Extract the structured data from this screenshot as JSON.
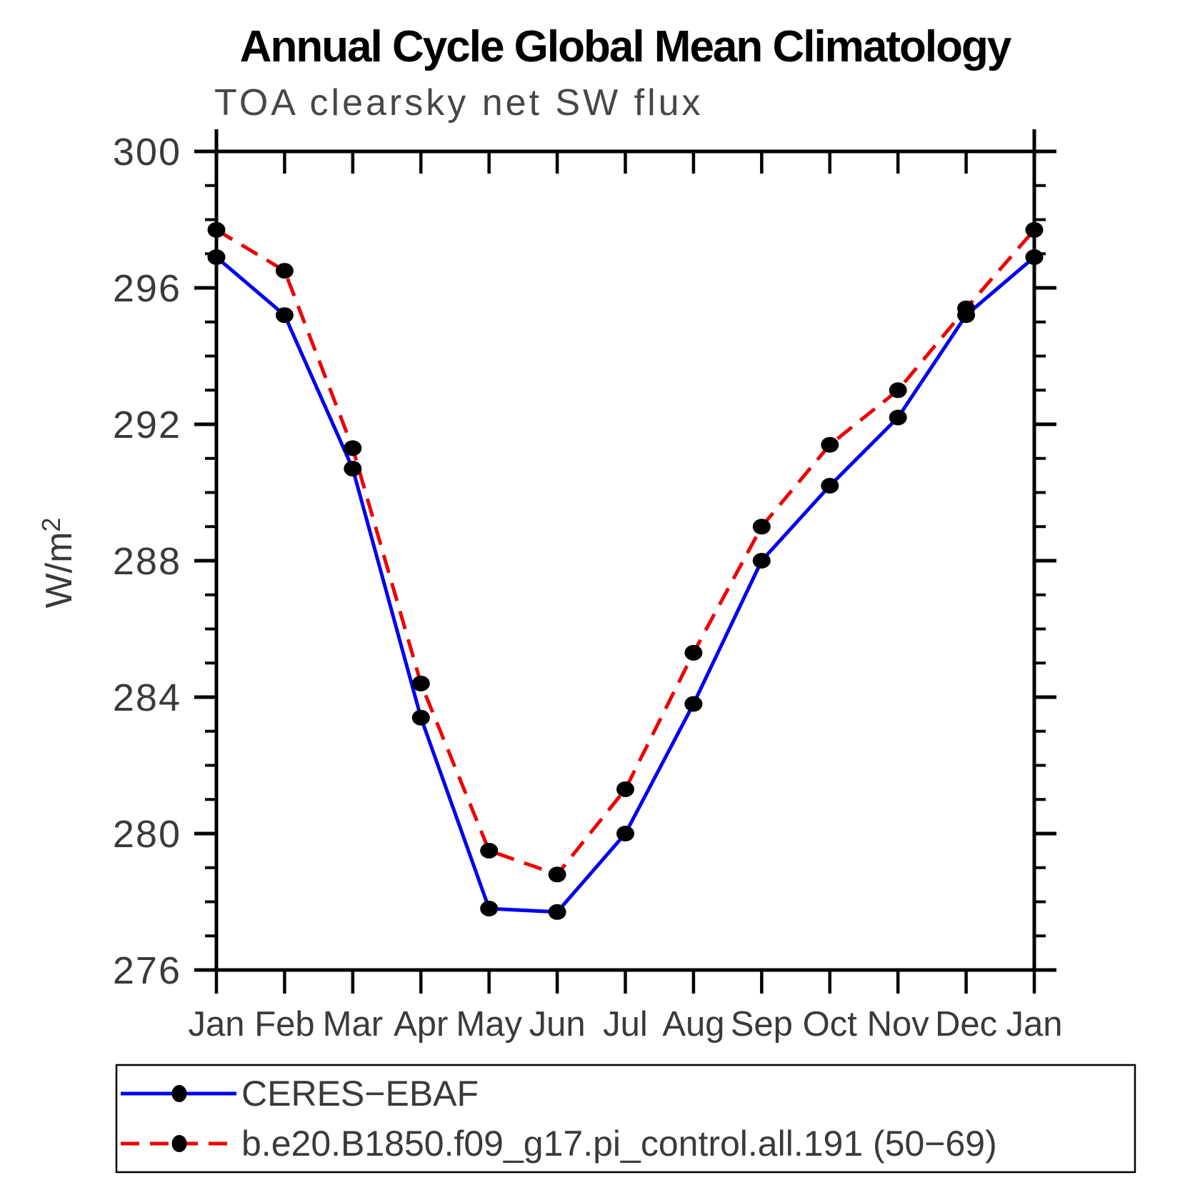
{
  "title": "Annual Cycle Global Mean Climatology",
  "subtitle": "TOA clearsky net SW flux",
  "y_axis": {
    "label_base": "W/m",
    "label_exp": "2"
  },
  "legend": {
    "items": [
      {
        "label": "CERES−EBAF"
      },
      {
        "label": "b.e20.B1850.f09_g17.pi_control.all.191 (50−69)"
      }
    ]
  },
  "chart_data": {
    "type": "line",
    "title": "Annual Cycle Global Mean Climatology",
    "subtitle": "TOA clearsky net SW flux",
    "xlabel": "",
    "ylabel": "W/m^2",
    "categories": [
      "Jan",
      "Feb",
      "Mar",
      "Apr",
      "May",
      "Jun",
      "Jul",
      "Aug",
      "Sep",
      "Oct",
      "Nov",
      "Dec",
      "Jan"
    ],
    "ylim": [
      276,
      300
    ],
    "yticks_major": [
      276,
      280,
      284,
      288,
      292,
      296,
      300
    ],
    "ytick_minor_step": 1,
    "grid": false,
    "legend_position": "bottom",
    "marker": "filled-circle",
    "marker_color": "#000000",
    "series": [
      {
        "name": "CERES-EBAF",
        "color": "#0000ee",
        "line_style": "solid",
        "values": [
          296.9,
          295.2,
          290.7,
          283.4,
          277.8,
          277.7,
          280.0,
          283.8,
          288.0,
          290.2,
          292.2,
          295.2,
          296.9
        ]
      },
      {
        "name": "b.e20.B1850.f09_g17.pi_control.all.191 (50-69)",
        "color": "#ee0000",
        "line_style": "dashed",
        "values": [
          297.7,
          296.5,
          291.3,
          284.4,
          279.5,
          278.8,
          281.3,
          285.3,
          289.0,
          291.4,
          293.0,
          295.4,
          297.7
        ]
      }
    ]
  }
}
